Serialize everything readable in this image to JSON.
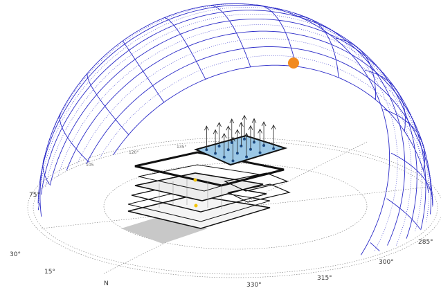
{
  "compass_labels": [
    "75°",
    "30°",
    "15°",
    "N",
    "330°",
    "315°",
    "300°",
    "285°",
    "120°",
    "135°",
    "105"
  ]
}
